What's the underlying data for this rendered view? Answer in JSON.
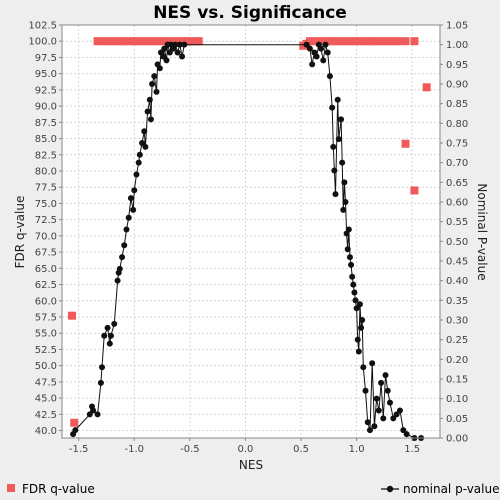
{
  "chart_data": {
    "type": "scatter",
    "title": "NES vs. Significance",
    "xlabel": "NES",
    "ylabel_left": "FDR q-value",
    "ylabel_right": "Nominal P-value",
    "xlim": [
      -1.65,
      1.75
    ],
    "ylim_left": [
      38.85,
      102.5
    ],
    "ylim_right": [
      0,
      1.05
    ],
    "x_ticks": [
      "-1.5",
      "-1.0",
      "-0.5",
      "0.0",
      "0.5",
      "1.0",
      "1.5"
    ],
    "x_tick_values": [
      -1.5,
      -1.0,
      -0.5,
      0.0,
      0.5,
      1.0,
      1.5
    ],
    "y_left_ticks": [
      "40.0",
      "42.5",
      "45.0",
      "47.5",
      "50.0",
      "52.5",
      "55.0",
      "57.5",
      "60.0",
      "62.5",
      "65.0",
      "67.5",
      "70.0",
      "72.5",
      "75.0",
      "77.5",
      "80.0",
      "82.5",
      "85.0",
      "87.5",
      "90.0",
      "92.5",
      "95.0",
      "97.5",
      "100.0",
      "102.5"
    ],
    "y_left_tick_values": [
      40.0,
      42.5,
      45.0,
      47.5,
      50.0,
      52.5,
      55.0,
      57.5,
      60.0,
      62.5,
      65.0,
      67.5,
      70.0,
      72.5,
      75.0,
      77.5,
      80.0,
      82.5,
      85.0,
      87.5,
      90.0,
      92.5,
      95.0,
      97.5,
      100.0,
      102.5
    ],
    "y_right_ticks": [
      "0.00",
      "0.05",
      "0.10",
      "0.15",
      "0.20",
      "0.25",
      "0.30",
      "0.35",
      "0.40",
      "0.45",
      "0.50",
      "0.55",
      "0.60",
      "0.65",
      "0.70",
      "0.75",
      "0.80",
      "0.85",
      "0.90",
      "0.95",
      "1.00",
      "1.05"
    ],
    "y_right_tick_values": [
      0.0,
      0.05,
      0.1,
      0.15,
      0.2,
      0.25,
      0.3,
      0.35,
      0.4,
      0.45,
      0.5,
      0.55,
      0.6,
      0.65,
      0.7,
      0.75,
      0.8,
      0.85,
      0.9,
      0.95,
      1.0,
      1.05
    ],
    "grid": true,
    "legend_position": "bottom",
    "series": [
      {
        "name": "FDR q-value",
        "axis": "left",
        "color": "#f05a5a",
        "marker": "square",
        "points": [
          [
            -1.56,
            57.7
          ],
          [
            -1.54,
            41.2
          ],
          [
            -1.33,
            100.0
          ],
          [
            -1.29,
            100.0
          ],
          [
            -1.25,
            100.0
          ],
          [
            -1.21,
            100.0
          ],
          [
            -1.17,
            100.0
          ],
          [
            -1.13,
            100.0
          ],
          [
            -1.09,
            100.0
          ],
          [
            -1.05,
            100.0
          ],
          [
            -1.01,
            100.0
          ],
          [
            -0.97,
            100.0
          ],
          [
            -0.93,
            100.0
          ],
          [
            -0.89,
            100.0
          ],
          [
            -0.85,
            100.0
          ],
          [
            -0.81,
            100.0
          ],
          [
            -0.77,
            100.0
          ],
          [
            -0.73,
            100.0
          ],
          [
            -0.69,
            100.0
          ],
          [
            -0.65,
            100.0
          ],
          [
            -0.61,
            100.0
          ],
          [
            -0.57,
            100.0
          ],
          [
            -0.53,
            100.0
          ],
          [
            -0.49,
            100.0
          ],
          [
            -0.45,
            100.0
          ],
          [
            -0.42,
            100.0
          ],
          [
            0.52,
            99.3
          ],
          [
            0.55,
            99.6
          ],
          [
            0.58,
            100.0
          ],
          [
            0.62,
            100.0
          ],
          [
            0.66,
            100.0
          ],
          [
            0.7,
            100.0
          ],
          [
            0.74,
            100.0
          ],
          [
            0.78,
            100.0
          ],
          [
            0.82,
            100.0
          ],
          [
            0.86,
            100.0
          ],
          [
            0.9,
            100.0
          ],
          [
            0.94,
            100.0
          ],
          [
            0.98,
            100.0
          ],
          [
            1.02,
            100.0
          ],
          [
            1.06,
            100.0
          ],
          [
            1.1,
            100.0
          ],
          [
            1.14,
            100.0
          ],
          [
            1.18,
            100.0
          ],
          [
            1.22,
            100.0
          ],
          [
            1.26,
            100.0
          ],
          [
            1.3,
            100.0
          ],
          [
            1.34,
            100.0
          ],
          [
            1.37,
            100.0
          ],
          [
            1.44,
            100.0
          ],
          [
            1.52,
            100.0
          ],
          [
            1.63,
            92.9
          ],
          [
            1.44,
            84.2
          ],
          [
            1.52,
            77.0
          ]
        ]
      },
      {
        "name": "nominal p-value",
        "axis": "right",
        "color": "#111111",
        "marker": "circle",
        "points": [
          [
            -1.55,
            0.01
          ],
          [
            -1.53,
            0.02
          ],
          [
            -1.4,
            0.06
          ],
          [
            -1.38,
            0.08
          ],
          [
            -1.37,
            0.07
          ],
          [
            -1.33,
            0.06
          ],
          [
            -1.3,
            0.14
          ],
          [
            -1.29,
            0.18
          ],
          [
            -1.27,
            0.26
          ],
          [
            -1.24,
            0.28
          ],
          [
            -1.22,
            0.24
          ],
          [
            -1.21,
            0.26
          ],
          [
            -1.18,
            0.29
          ],
          [
            -1.15,
            0.4
          ],
          [
            -1.14,
            0.42
          ],
          [
            -1.13,
            0.43
          ],
          [
            -1.11,
            0.46
          ],
          [
            -1.09,
            0.49
          ],
          [
            -1.07,
            0.53
          ],
          [
            -1.05,
            0.56
          ],
          [
            -1.03,
            0.61
          ],
          [
            -1.01,
            0.58
          ],
          [
            -1.0,
            0.63
          ],
          [
            -0.98,
            0.67
          ],
          [
            -0.96,
            0.7
          ],
          [
            -0.95,
            0.72
          ],
          [
            -0.93,
            0.75
          ],
          [
            -0.91,
            0.78
          ],
          [
            -0.9,
            0.74
          ],
          [
            -0.88,
            0.83
          ],
          [
            -0.86,
            0.86
          ],
          [
            -0.85,
            0.81
          ],
          [
            -0.84,
            0.9
          ],
          [
            -0.82,
            0.92
          ],
          [
            -0.8,
            0.88
          ],
          [
            -0.79,
            0.95
          ],
          [
            -0.77,
            0.94
          ],
          [
            -0.76,
            0.98
          ],
          [
            -0.74,
            0.97
          ],
          [
            -0.73,
            0.99
          ],
          [
            -0.71,
            0.96
          ],
          [
            -0.7,
            1.0
          ],
          [
            -0.68,
            0.98
          ],
          [
            -0.67,
            1.0
          ],
          [
            -0.65,
            0.99
          ],
          [
            -0.63,
            1.0
          ],
          [
            -0.61,
            0.98
          ],
          [
            -0.59,
            1.0
          ],
          [
            -0.57,
            0.97
          ],
          [
            -0.55,
            1.0
          ],
          [
            0.55,
            1.0
          ],
          [
            0.58,
            0.99
          ],
          [
            0.6,
            0.95
          ],
          [
            0.62,
            0.98
          ],
          [
            0.64,
            0.97
          ],
          [
            0.66,
            1.0
          ],
          [
            0.68,
            0.99
          ],
          [
            0.7,
            0.96
          ],
          [
            0.72,
            1.0
          ],
          [
            0.74,
            0.98
          ],
          [
            0.76,
            0.92
          ],
          [
            0.78,
            0.84
          ],
          [
            0.79,
            0.74
          ],
          [
            0.8,
            0.68
          ],
          [
            0.81,
            0.62
          ],
          [
            0.83,
            0.86
          ],
          [
            0.84,
            0.76
          ],
          [
            0.86,
            0.81
          ],
          [
            0.87,
            0.7
          ],
          [
            0.88,
            0.58
          ],
          [
            0.89,
            0.65
          ],
          [
            0.9,
            0.6
          ],
          [
            0.91,
            0.52
          ],
          [
            0.92,
            0.48
          ],
          [
            0.93,
            0.53
          ],
          [
            0.94,
            0.46
          ],
          [
            0.95,
            0.44
          ],
          [
            0.96,
            0.41
          ],
          [
            0.97,
            0.39
          ],
          [
            0.98,
            0.37
          ],
          [
            0.99,
            0.35
          ],
          [
            1.0,
            0.33
          ],
          [
            1.01,
            0.25
          ],
          [
            1.02,
            0.22
          ],
          [
            1.03,
            0.34
          ],
          [
            1.04,
            0.28
          ],
          [
            1.05,
            0.3
          ],
          [
            1.06,
            0.18
          ],
          [
            1.08,
            0.12
          ],
          [
            1.1,
            0.04
          ],
          [
            1.12,
            0.02
          ],
          [
            1.14,
            0.19
          ],
          [
            1.16,
            0.03
          ],
          [
            1.18,
            0.1
          ],
          [
            1.2,
            0.07
          ],
          [
            1.22,
            0.14
          ],
          [
            1.24,
            0.05
          ],
          [
            1.26,
            0.16
          ],
          [
            1.28,
            0.12
          ],
          [
            1.3,
            0.09
          ],
          [
            1.33,
            0.05
          ],
          [
            1.36,
            0.06
          ],
          [
            1.39,
            0.07
          ],
          [
            1.42,
            0.02
          ],
          [
            1.45,
            0.01
          ],
          [
            1.52,
            0.0
          ],
          [
            1.58,
            0.0
          ]
        ]
      }
    ]
  },
  "legend": {
    "fdr_label": "FDR q-value",
    "nominal_label": "nominal p-value",
    "fdr_color": "#f05a5a",
    "nominal_color": "#111111"
  }
}
